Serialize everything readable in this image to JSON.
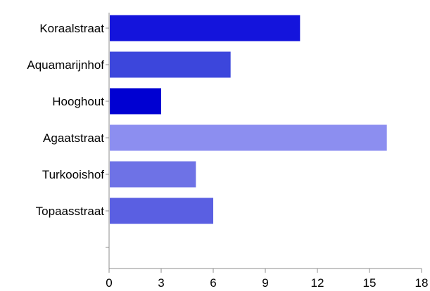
{
  "chart_data": {
    "type": "bar",
    "orientation": "horizontal",
    "categories": [
      "Koraalstraat",
      "Aquamarijnhof",
      "Hooghout",
      "Agaatstraat",
      "Turkooishof",
      "Topaasstraat",
      ""
    ],
    "values": [
      11,
      7,
      3,
      16,
      5,
      6,
      null
    ],
    "bar_colors": [
      "#1414dc",
      "#3c46dc",
      "#0000d2",
      "#8c8ef0",
      "#6e72e6",
      "#5a5fe2"
    ],
    "xlim": [
      0,
      18
    ],
    "x_ticks": [
      0,
      3,
      6,
      9,
      12,
      15,
      18
    ],
    "title": "",
    "xlabel": "",
    "ylabel": "",
    "grid": false,
    "legend": "none"
  }
}
